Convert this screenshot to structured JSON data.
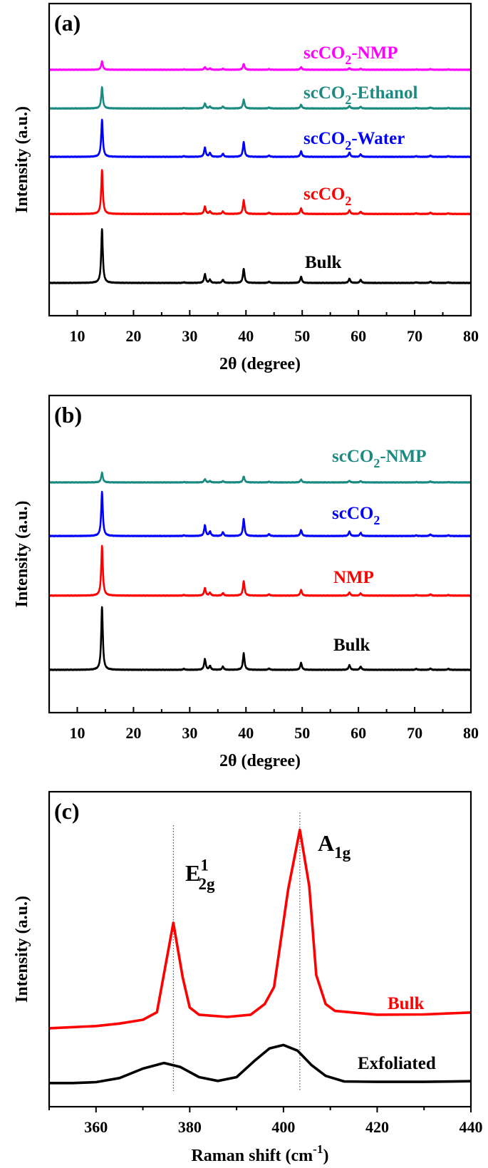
{
  "chart_data": [
    {
      "type": "line",
      "panel_label": "(a)",
      "xlabel": "2θ (degree)",
      "ylabel": "Intensity (a.u.)",
      "xlim": [
        5,
        80
      ],
      "ylim": [
        0,
        100
      ],
      "xticks": [
        10,
        20,
        30,
        40,
        50,
        60,
        70,
        80
      ],
      "grid": false,
      "peak_positions": [
        14.4,
        29.0,
        32.7,
        33.6,
        35.9,
        39.6,
        44.1,
        49.8,
        58.4,
        60.4,
        70.3,
        72.8,
        76.0
      ],
      "series": [
        {
          "name": "scCO2-NMP",
          "label": [
            {
              "t": "scCO"
            },
            {
              "t": "2",
              "sub": true
            },
            {
              "t": "-NMP"
            }
          ],
          "color": "#ff00ff",
          "offset": 78.8,
          "peak_heights": [
            2.7,
            0.1,
            0.8,
            0.4,
            0.3,
            1.9,
            0.2,
            0.8,
            0.5,
            0.3,
            0.1,
            0.2,
            0.1
          ]
        },
        {
          "name": "scCO2-Ethanol",
          "label": [
            {
              "t": "scCO"
            },
            {
              "t": "2",
              "sub": true
            },
            {
              "t": "-Ethanol"
            }
          ],
          "color": "#1b8a80",
          "offset": 66.4,
          "peak_heights": [
            6.8,
            0.15,
            1.6,
            0.6,
            0.6,
            2.8,
            0.3,
            1.2,
            0.8,
            0.5,
            0.15,
            0.3,
            0.15
          ]
        },
        {
          "name": "scCO2-Water",
          "label": [
            {
              "t": "scCO"
            },
            {
              "t": "2",
              "sub": true
            },
            {
              "t": "-Water"
            }
          ],
          "color": "#0000ff",
          "offset": 50.9,
          "peak_heights": [
            11.9,
            0.2,
            3.0,
            1.2,
            1.0,
            4.8,
            0.4,
            1.8,
            1.4,
            0.8,
            0.2,
            0.4,
            0.2
          ]
        },
        {
          "name": "scCO2",
          "label": [
            {
              "t": "scCO"
            },
            {
              "t": "2",
              "sub": true
            }
          ],
          "color": "#ff0000",
          "offset": 32.6,
          "peak_heights": [
            14.1,
            0.2,
            2.4,
            0.8,
            0.8,
            4.4,
            0.4,
            1.8,
            1.2,
            0.7,
            0.2,
            0.4,
            0.2
          ]
        },
        {
          "name": "Bulk",
          "label": [
            {
              "t": "Bulk"
            }
          ],
          "color": "#000000",
          "offset": 10.5,
          "peak_heights": [
            17.3,
            0.2,
            2.8,
            1.0,
            1.0,
            4.6,
            0.4,
            2.0,
            1.4,
            1.0,
            0.2,
            0.4,
            0.2
          ]
        }
      ]
    },
    {
      "type": "line",
      "panel_label": "(b)",
      "xlabel": "2θ (degree)",
      "ylabel": "Intensity (a.u.)",
      "xlim": [
        5,
        80
      ],
      "ylim": [
        0,
        100
      ],
      "xticks": [
        10,
        20,
        30,
        40,
        50,
        60,
        70,
        80
      ],
      "grid": false,
      "peak_positions": [
        14.4,
        29.0,
        32.7,
        33.6,
        35.9,
        39.6,
        44.1,
        49.8,
        58.4,
        60.4,
        70.3,
        72.8,
        76.0
      ],
      "series": [
        {
          "name": "scCO2-NMP",
          "label": [
            {
              "t": "scCO"
            },
            {
              "t": "2",
              "sub": true
            },
            {
              "t": "-NMP"
            }
          ],
          "color": "#1b8a80",
          "offset": 72.6,
          "peak_heights": [
            3.1,
            0.1,
            1.0,
            0.4,
            0.4,
            1.9,
            0.2,
            0.9,
            0.5,
            0.4,
            0.1,
            0.3,
            0.1
          ]
        },
        {
          "name": "scCO2",
          "label": [
            {
              "t": "scCO"
            },
            {
              "t": "2",
              "sub": true
            }
          ],
          "color": "#0000ff",
          "offset": 55.7,
          "peak_heights": [
            13.9,
            0.2,
            3.4,
            1.4,
            1.2,
            5.3,
            0.6,
            1.9,
            1.4,
            1.0,
            0.2,
            0.5,
            0.2
          ]
        },
        {
          "name": "NMP",
          "label": [
            {
              "t": "NMP"
            }
          ],
          "color": "#ff0000",
          "offset": 36.9,
          "peak_heights": [
            15.7,
            0.2,
            2.4,
            0.9,
            0.8,
            4.6,
            0.4,
            1.8,
            1.0,
            0.7,
            0.2,
            0.4,
            0.2
          ]
        },
        {
          "name": "Bulk",
          "label": [
            {
              "t": "Bulk"
            }
          ],
          "color": "#000000",
          "offset": 13.5,
          "peak_heights": [
            19.8,
            0.3,
            3.4,
            1.2,
            1.0,
            5.2,
            0.4,
            2.2,
            1.5,
            1.0,
            0.3,
            0.4,
            0.3
          ]
        }
      ]
    },
    {
      "type": "line",
      "panel_label": "(c)",
      "xlabel": "Raman shift (cm-1)",
      "xlabel_parts": [
        {
          "t": "Raman shift (cm"
        },
        {
          "t": "-1",
          "sup": true
        },
        {
          "t": ")"
        }
      ],
      "ylabel": "Intensity (a.u.)",
      "xlim": [
        350,
        440
      ],
      "ylim": [
        0,
        100
      ],
      "xticks": [
        360,
        380,
        400,
        420,
        440
      ],
      "grid": false,
      "reference_lines": [
        376.5,
        403.5
      ],
      "annotations": [
        {
          "text": "E12g",
          "parts": [
            {
              "t": "E"
            },
            {
              "t": "1",
              "sup": true
            },
            {
              "t": "2g",
              "subAfterSup": true
            }
          ]
        },
        {
          "text": "A1g",
          "parts": [
            {
              "t": "A"
            },
            {
              "t": "1g",
              "sub": true
            }
          ]
        }
      ],
      "series": [
        {
          "name": "Bulk",
          "label": [
            {
              "t": "Bulk"
            }
          ],
          "color": "#ff0000",
          "x": [
            350,
            360,
            365,
            370,
            373,
            376.5,
            378.5,
            380,
            382,
            388,
            393,
            396,
            398,
            401,
            403.5,
            405.5,
            407,
            409,
            411,
            420,
            430,
            440
          ],
          "y": [
            24.9,
            25.6,
            26.4,
            27.6,
            30.0,
            58.4,
            41.0,
            31.5,
            29.2,
            28.5,
            29.2,
            32.6,
            38.0,
            69.0,
            87.9,
            70.0,
            41.8,
            32.6,
            30.4,
            29.2,
            29.3,
            29.9
          ]
        },
        {
          "name": "Exfoliated",
          "label": [
            {
              "t": "Exfoliated"
            }
          ],
          "color": "#000000",
          "x": [
            350,
            355,
            360,
            365,
            370,
            374.5,
            378,
            382,
            386,
            390,
            394,
            397,
            400,
            403,
            406,
            409,
            413,
            420,
            430,
            440
          ],
          "y": [
            7.5,
            7.5,
            7.8,
            9.1,
            12.1,
            13.9,
            12.6,
            9.4,
            8.2,
            9.4,
            14.8,
            18.5,
            19.6,
            17.8,
            13.2,
            9.8,
            8.0,
            7.9,
            7.9,
            8.1
          ]
        }
      ]
    }
  ]
}
